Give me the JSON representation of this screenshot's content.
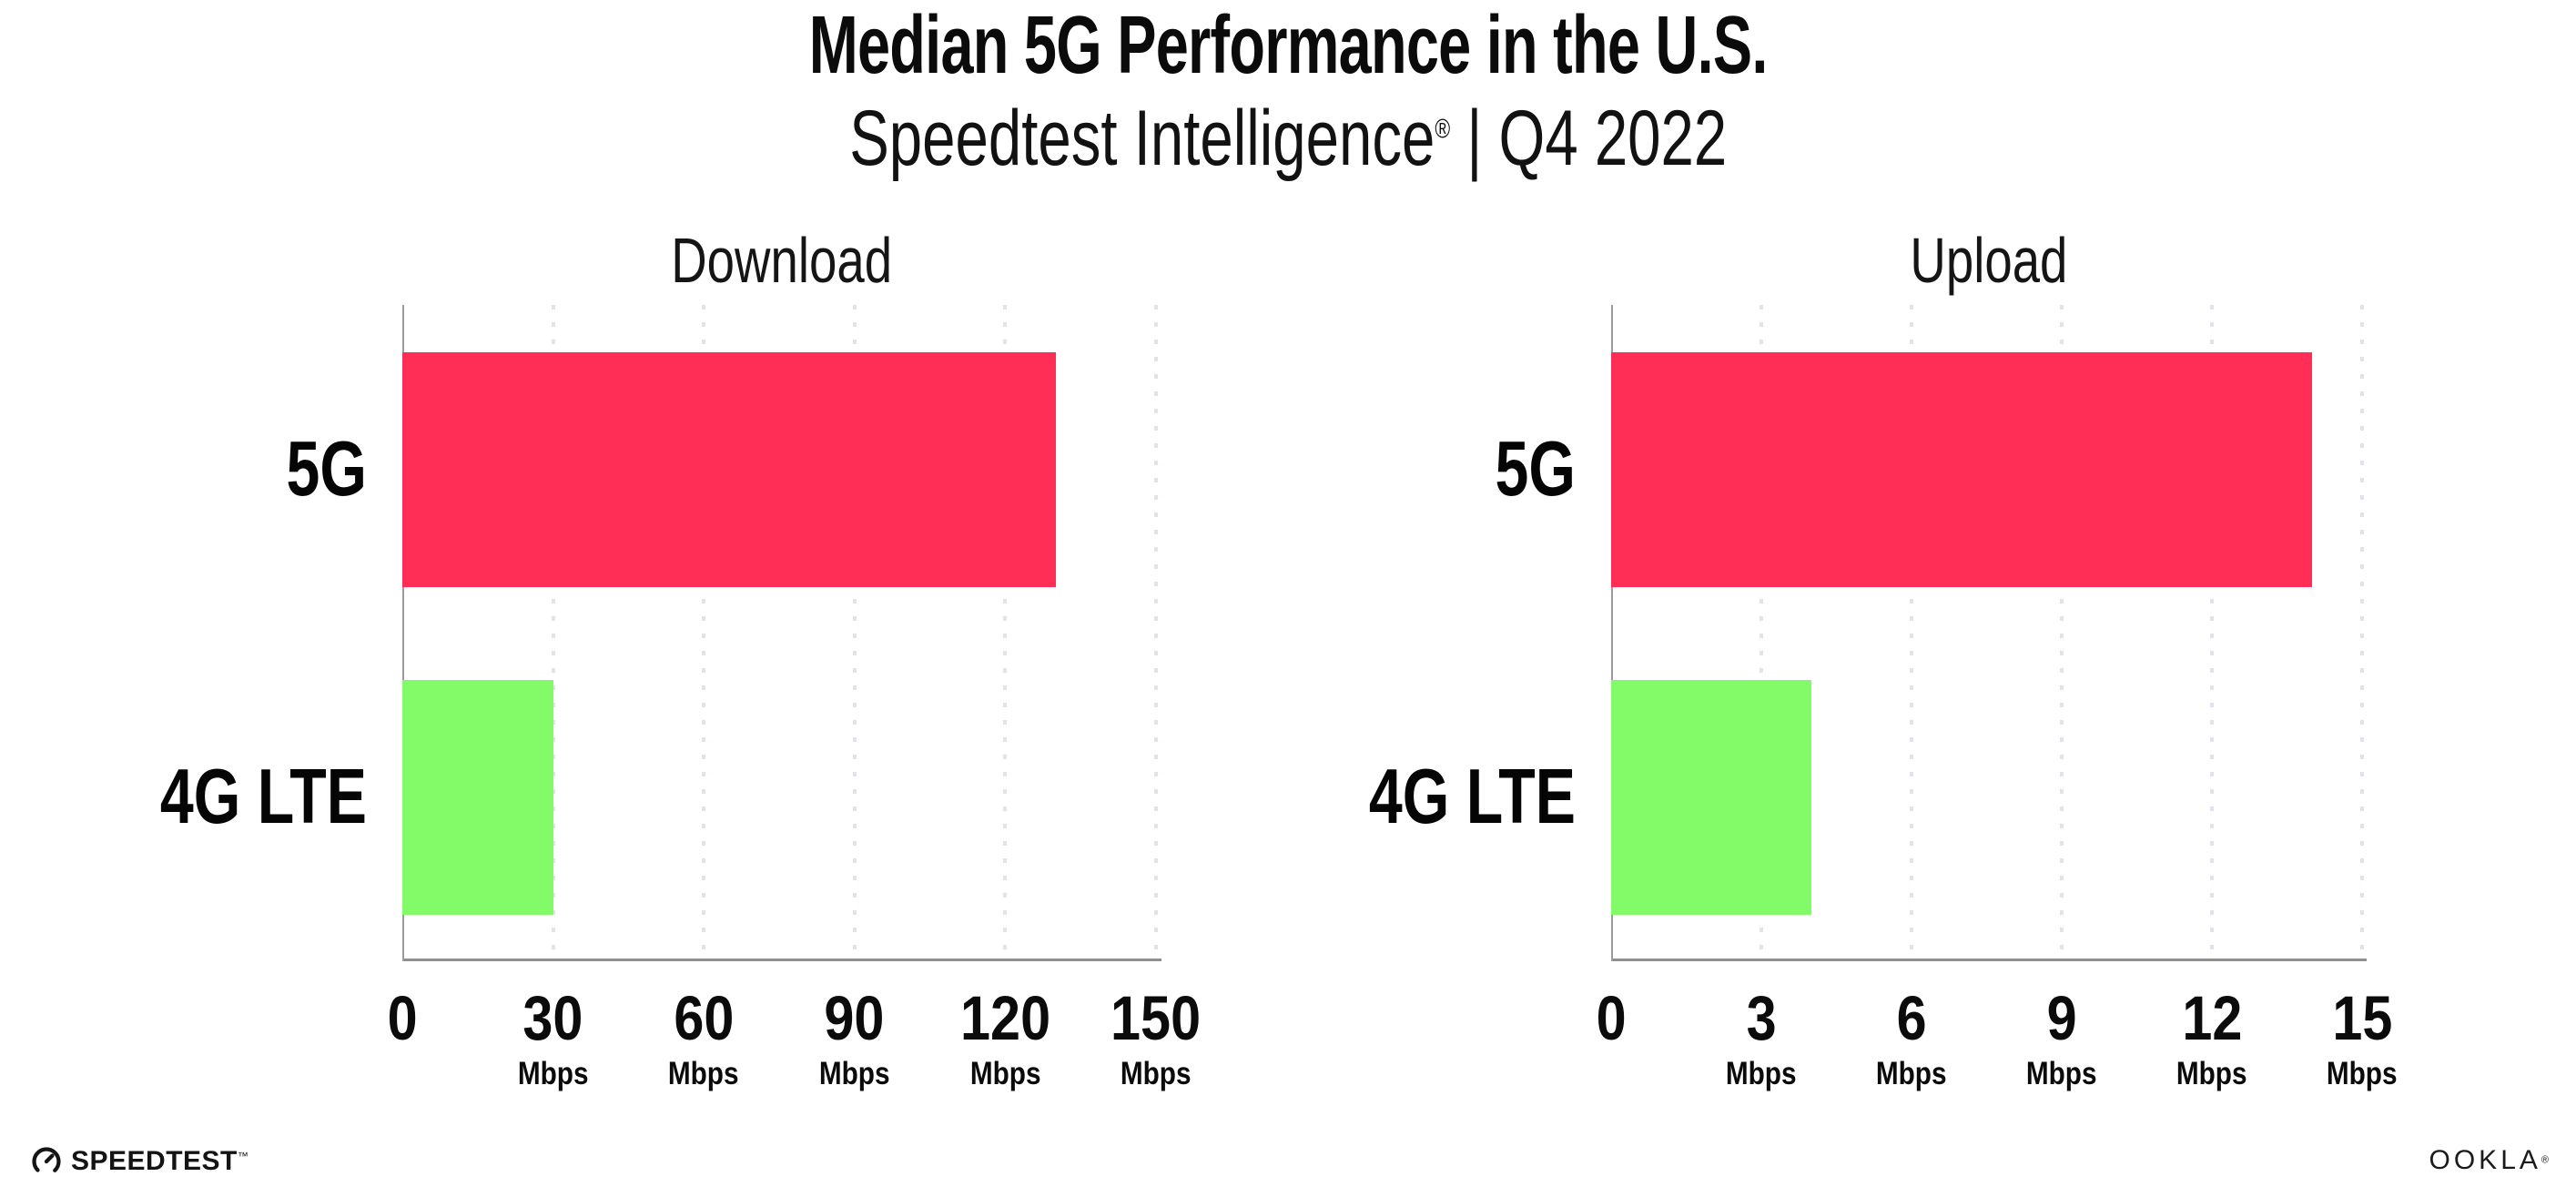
{
  "header": {
    "title": "Median 5G Performance in the U.S.",
    "subtitle_brand": "Speedtest Intelligence",
    "subtitle_reg": "®",
    "subtitle_rest": " | Q4 2022"
  },
  "chart_data": [
    {
      "type": "bar",
      "orientation": "horizontal",
      "title": "Download",
      "categories": [
        "5G",
        "4G LTE"
      ],
      "values": [
        130,
        30
      ],
      "unit": "Mbps",
      "xlabel": "",
      "xlim": [
        0,
        150
      ],
      "xticks": [
        0,
        30,
        60,
        90,
        120,
        150
      ],
      "bar_colors": [
        "#FF2E56",
        "#83FA67"
      ],
      "grid": "vertical-dotted",
      "legend": "none"
    },
    {
      "type": "bar",
      "orientation": "horizontal",
      "title": "Upload",
      "categories": [
        "5G",
        "4G LTE"
      ],
      "values": [
        14,
        4
      ],
      "unit": "Mbps",
      "xlabel": "",
      "xlim": [
        0,
        15
      ],
      "xticks": [
        0,
        3,
        6,
        9,
        12,
        15
      ],
      "bar_colors": [
        "#FF2E56",
        "#83FA67"
      ],
      "grid": "vertical-dotted",
      "legend": "none"
    }
  ],
  "style": {
    "accent_pink": "#FF2E56",
    "accent_green": "#83FA67",
    "axis_color": "#8f8f8f",
    "grid_color": "#e2e2ec",
    "text_color": "#0b0b0b"
  },
  "footer": {
    "speedtest_label": "SPEEDTEST",
    "speedtest_tm": "™",
    "ookla_label": "OOKLA",
    "ookla_reg": "®"
  }
}
